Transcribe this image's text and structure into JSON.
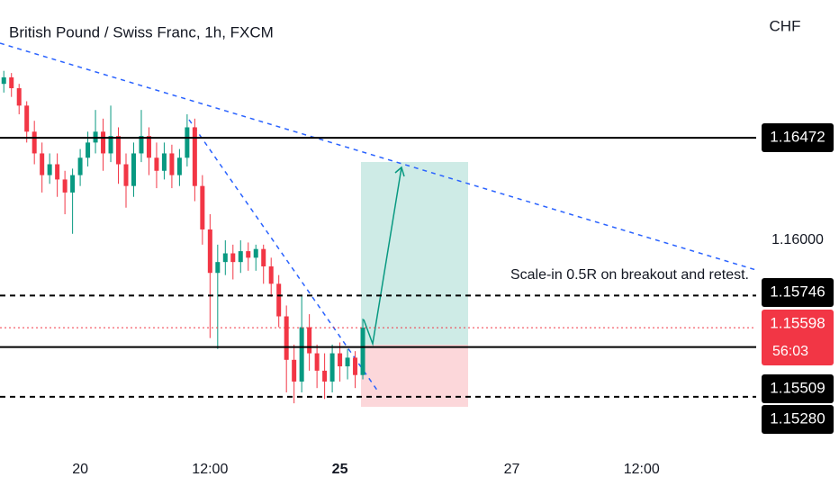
{
  "chart_data": {
    "type": "candlestick",
    "title": "British Pound / Swiss Franc, 1h, FXCM",
    "currency": "CHF",
    "annotation": "Scale-in 0.5R on breakout and retest.",
    "countdown": "56:03",
    "up_color": "#089981",
    "down_color": "#f23645",
    "xlim": [
      -0.5,
      98.5
    ],
    "xticks": [
      {
        "value": 10,
        "label": "20"
      },
      {
        "value": 27,
        "label": "12:00"
      },
      {
        "value": 44,
        "label": "25"
      },
      {
        "value": 66.5,
        "label": "27"
      },
      {
        "value": 83.5,
        "label": "12:00"
      }
    ],
    "ylim": [
      1.15035,
      1.17106
    ],
    "yticks": [
      {
        "value": 1.16,
        "label": "1.16000"
      }
    ],
    "open": [
      1.1672,
      1.1675,
      1.167,
      1.1662,
      1.165,
      1.164,
      1.163,
      1.1635,
      1.1628,
      1.1622,
      1.163,
      1.1638,
      1.1645,
      1.165,
      1.164,
      1.1648,
      1.1635,
      1.1625,
      1.164,
      1.1648,
      1.1638,
      1.1632,
      1.164,
      1.163,
      1.1638,
      1.1652,
      1.1625,
      1.1605,
      1.1585,
      1.159,
      1.1594,
      1.159,
      1.1595,
      1.1592,
      1.1596,
      1.1588,
      1.158,
      1.1565,
      1.1545,
      1.1535,
      1.156,
      1.1548,
      1.154,
      1.1535,
      1.1548,
      1.1542,
      1.1546,
      1.1538
    ],
    "high": [
      1.1678,
      1.1677,
      1.1672,
      1.1664,
      1.1655,
      1.1645,
      1.164,
      1.164,
      1.1632,
      1.1633,
      1.1642,
      1.165,
      1.166,
      1.1656,
      1.1662,
      1.1652,
      1.164,
      1.1645,
      1.166,
      1.1652,
      1.1645,
      1.1645,
      1.1644,
      1.1642,
      1.1658,
      1.1656,
      1.163,
      1.1612,
      1.1598,
      1.16,
      1.1598,
      1.16,
      1.1599,
      1.1598,
      1.1598,
      1.1592,
      1.1584,
      1.157,
      1.1552,
      1.1575,
      1.1566,
      1.1552,
      1.1548,
      1.1552,
      1.1553,
      1.155,
      1.1549,
      1.1564
    ],
    "low": [
      1.1668,
      1.1666,
      1.1658,
      1.1645,
      1.1635,
      1.1622,
      1.1626,
      1.162,
      1.1612,
      1.1603,
      1.1625,
      1.1634,
      1.164,
      1.1632,
      1.1636,
      1.1626,
      1.1615,
      1.162,
      1.1636,
      1.163,
      1.1624,
      1.1628,
      1.1624,
      1.1625,
      1.1634,
      1.1618,
      1.1598,
      1.1555,
      1.155,
      1.1584,
      1.1582,
      1.1585,
      1.1586,
      1.1586,
      1.158,
      1.1574,
      1.156,
      1.153,
      1.1525,
      1.153,
      1.154,
      1.1532,
      1.1527,
      1.153,
      1.1535,
      1.1536,
      1.1532,
      1.1536
    ],
    "close": [
      1.1675,
      1.167,
      1.1662,
      1.165,
      1.164,
      1.163,
      1.1635,
      1.1628,
      1.1622,
      1.163,
      1.1638,
      1.1645,
      1.165,
      1.164,
      1.1648,
      1.1635,
      1.1625,
      1.164,
      1.1648,
      1.1638,
      1.1632,
      1.164,
      1.163,
      1.1638,
      1.1652,
      1.1625,
      1.1605,
      1.1585,
      1.159,
      1.1594,
      1.159,
      1.1595,
      1.1592,
      1.1596,
      1.1588,
      1.158,
      1.1565,
      1.1545,
      1.1535,
      1.156,
      1.1548,
      1.154,
      1.1535,
      1.1548,
      1.1542,
      1.1546,
      1.1538,
      1.15598
    ],
    "levels": [
      {
        "value": 1.16472,
        "style": "solid",
        "color": "#000000"
      },
      {
        "value": 1.15746,
        "style": "dashed",
        "color": "#000000"
      },
      {
        "value": 1.15598,
        "style": "dotted",
        "color": "#f23645"
      },
      {
        "value": 1.15509,
        "style": "solid",
        "color": "#000000"
      },
      {
        "value": 1.1528,
        "label": "1.15280",
        "style": "dashed",
        "color": "#000000"
      }
    ]
  }
}
